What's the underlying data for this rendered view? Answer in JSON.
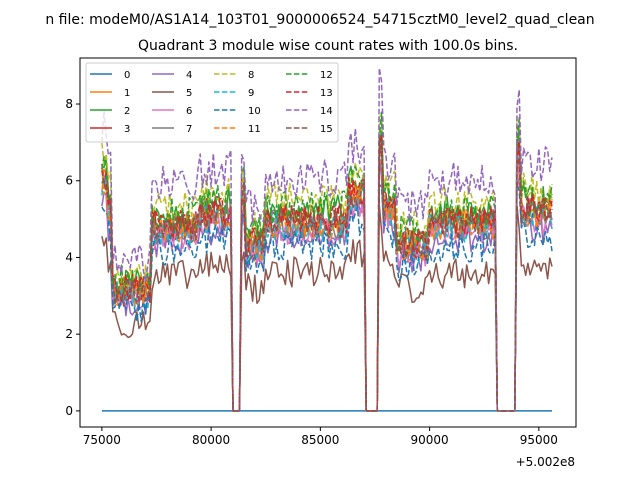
{
  "chart_data": {
    "type": "line",
    "suptitle": "n file: modeM0/AS1A14_103T01_9000006524_54715cztM0_level2_quad_clean",
    "title": "Quadrant 3 module wise count rates with 100.0s bins.",
    "xlabel": "",
    "ylabel": "",
    "x_offset_label": "+5.002e8",
    "x_offset": 500200000,
    "xlim": [
      74000,
      96700
    ],
    "ylim": [
      -0.42,
      9.2
    ],
    "xticks": [
      75000,
      80000,
      85000,
      90000,
      95000
    ],
    "xtick_labels": [
      "75000",
      "80000",
      "85000",
      "90000",
      "95000"
    ],
    "yticks": [
      0,
      2,
      4,
      6,
      8
    ],
    "ytick_labels": [
      "0",
      "2",
      "4",
      "6",
      "8"
    ],
    "grid": false,
    "legend_position": "top-left",
    "legend_columns": 4,
    "x_start": 75000,
    "x_step": 100,
    "x_end": 95600,
    "gaps": [
      [
        81000,
        81300
      ],
      [
        87100,
        87600
      ],
      [
        93100,
        93900
      ]
    ],
    "series": [
      {
        "name": "0",
        "color": "#1f77b4",
        "dash": "solid",
        "level": 0.0,
        "amp": 0.0
      },
      {
        "name": "1",
        "color": "#ff7f0e",
        "dash": "solid",
        "level": 5.0,
        "amp": 0.4
      },
      {
        "name": "2",
        "color": "#2ca02c",
        "dash": "solid",
        "level": 5.3,
        "amp": 0.45
      },
      {
        "name": "3",
        "color": "#d62728",
        "dash": "solid",
        "level": 5.1,
        "amp": 0.4
      },
      {
        "name": "4",
        "color": "#9467bd",
        "dash": "solid",
        "level": 4.6,
        "amp": 0.4
      },
      {
        "name": "5",
        "color": "#8c564b",
        "dash": "solid",
        "level": 3.7,
        "amp": 0.4
      },
      {
        "name": "6",
        "color": "#e377c2",
        "dash": "solid",
        "level": 4.8,
        "amp": 0.4
      },
      {
        "name": "7",
        "color": "#7f7f7f",
        "dash": "solid",
        "level": 5.0,
        "amp": 0.4
      },
      {
        "name": "8",
        "color": "#bcbd22",
        "dash": "dashed",
        "level": 5.6,
        "amp": 0.45
      },
      {
        "name": "9",
        "color": "#17becf",
        "dash": "dashed",
        "level": 4.9,
        "amp": 0.4
      },
      {
        "name": "10",
        "color": "#1f77b4",
        "dash": "dashed",
        "level": 4.4,
        "amp": 0.4
      },
      {
        "name": "11",
        "color": "#ff7f0e",
        "dash": "dashed",
        "level": 5.0,
        "amp": 0.4
      },
      {
        "name": "12",
        "color": "#2ca02c",
        "dash": "dashed",
        "level": 5.4,
        "amp": 0.45
      },
      {
        "name": "13",
        "color": "#d62728",
        "dash": "dashed",
        "level": 5.1,
        "amp": 0.4
      },
      {
        "name": "14",
        "color": "#9467bd",
        "dash": "dashed",
        "level": 6.2,
        "amp": 0.5
      },
      {
        "name": "15",
        "color": "#8c564b",
        "dash": "dashed",
        "level": 5.0,
        "amp": 0.4
      }
    ]
  }
}
